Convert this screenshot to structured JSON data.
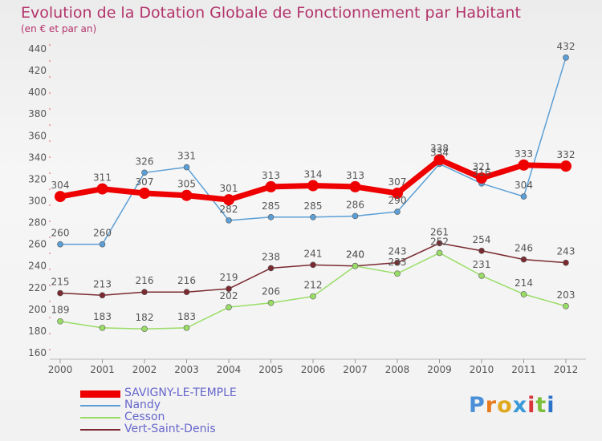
{
  "header": {
    "title": "Evolution de la Dotation Globale de Fonctionnement par Habitant",
    "subtitle": "(en € et par an)"
  },
  "logo": {
    "text": "Proxiti",
    "letter_colors": [
      "#4a8fd8",
      "#e87a1d",
      "#e0a81c",
      "#3a9ad9",
      "#d8363b",
      "#7cbf3a",
      "#2b74c9"
    ]
  },
  "chart_data": {
    "type": "line",
    "title": "Evolution de la Dotation Globale de Fonctionnement par Habitant",
    "subtitle": "(en € et par an)",
    "x": [
      "2000",
      "2001",
      "2002",
      "2003",
      "2004",
      "2005",
      "2006",
      "2007",
      "2008",
      "2009",
      "2010",
      "2011",
      "2012"
    ],
    "ylim": [
      160,
      440
    ],
    "yticks": [
      160,
      180,
      200,
      220,
      240,
      260,
      280,
      300,
      320,
      340,
      360,
      380,
      400,
      420,
      440
    ],
    "grid": false,
    "legend_position": "bottom-left",
    "series": [
      {
        "name": "SAVIGNY-LE-TEMPLE",
        "color": "#ee0000",
        "values": [
          304,
          311,
          307,
          305,
          301,
          313,
          314,
          313,
          307,
          338,
          321,
          333,
          332
        ]
      },
      {
        "name": "Nandy",
        "color": "#5b9fd6",
        "values": [
          260,
          260,
          326,
          331,
          282,
          285,
          285,
          286,
          290,
          334,
          316,
          304,
          432
        ]
      },
      {
        "name": "Cesson",
        "color": "#99dd66",
        "values": [
          189,
          183,
          182,
          183,
          202,
          206,
          212,
          240,
          233,
          252,
          231,
          214,
          203
        ]
      },
      {
        "name": "Vert-Saint-Denis",
        "color": "#7a2a30",
        "values": [
          215,
          213,
          216,
          216,
          219,
          238,
          241,
          240,
          243,
          261,
          254,
          246,
          243
        ]
      }
    ]
  }
}
